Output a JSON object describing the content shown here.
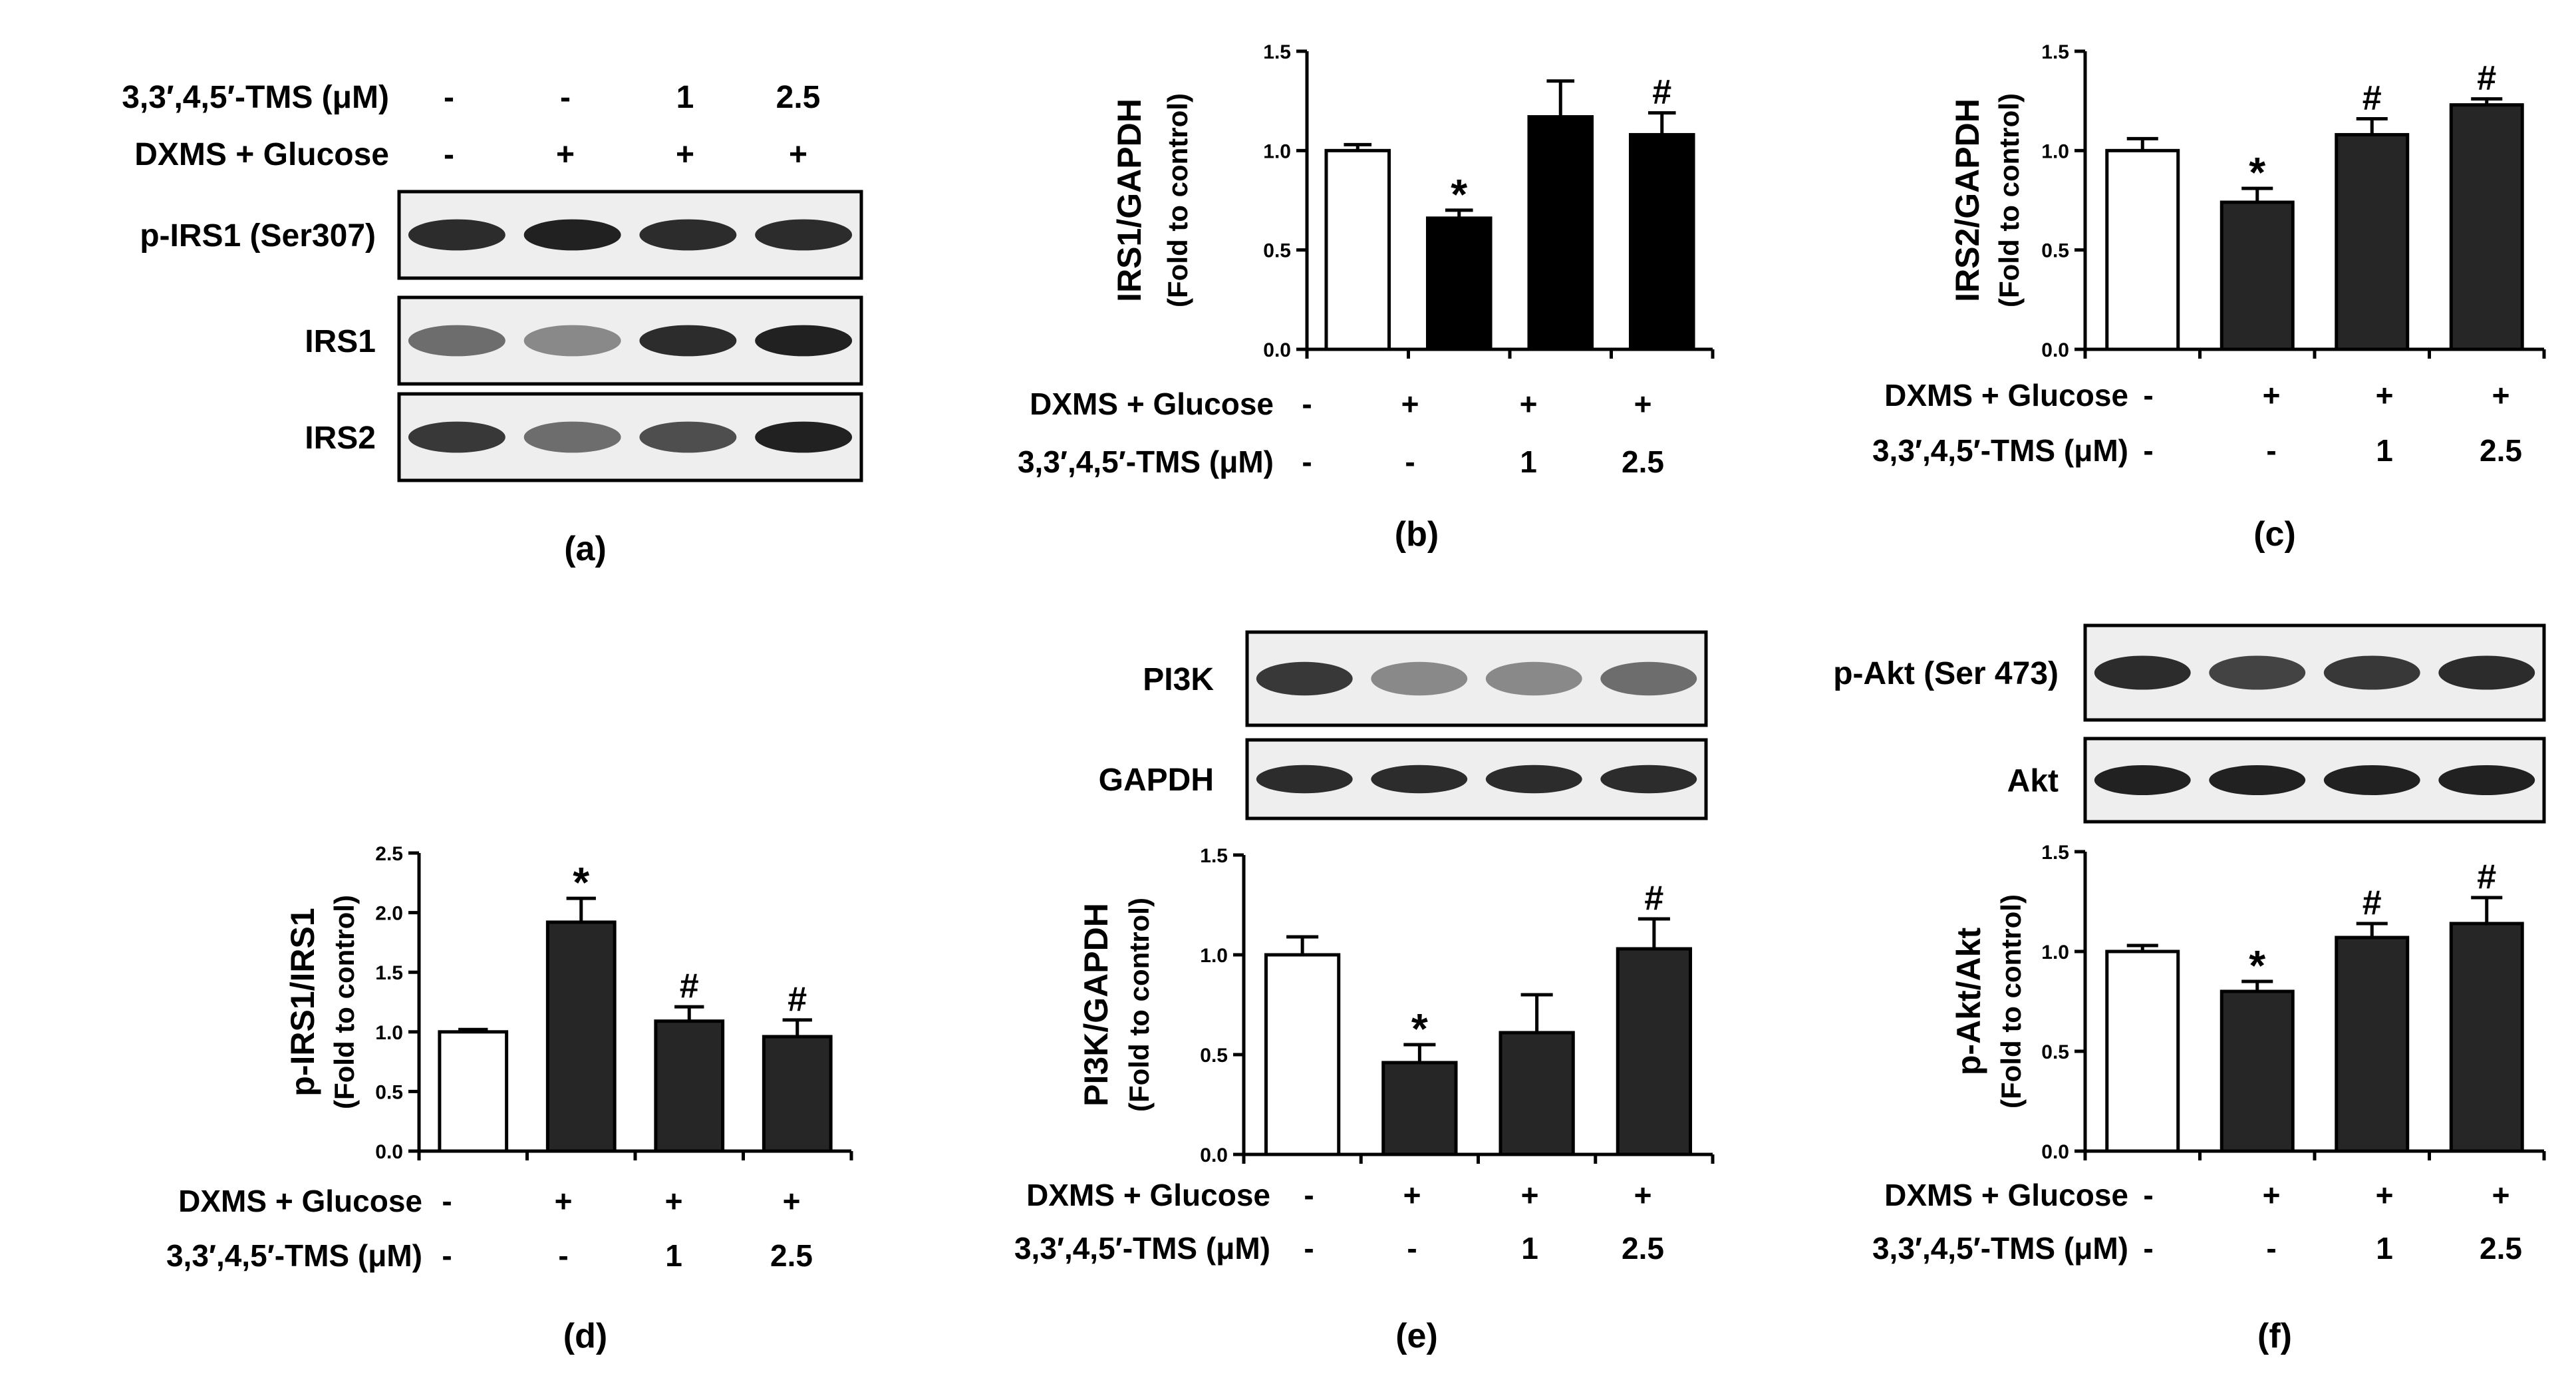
{
  "labels": {
    "dxms": "DXMS + Glucose",
    "tms": "3,3′,4,5′-TMS (μM)",
    "dxms_signs": [
      "-",
      "+",
      "+",
      "+"
    ],
    "tms_doses": [
      "-",
      "-",
      "1",
      "2.5"
    ]
  },
  "blots": {
    "a": {
      "panel": "(a)",
      "rows": [
        {
          "label": "p-IRS1 (Ser307)",
          "bands": [
            0.9,
            0.95,
            0.9,
            0.9
          ]
        },
        {
          "label": "IRS1",
          "bands": [
            0.6,
            0.45,
            0.9,
            0.95
          ]
        },
        {
          "label": "IRS2",
          "bands": [
            0.85,
            0.6,
            0.75,
            0.95
          ]
        }
      ]
    },
    "e": {
      "rows": [
        {
          "label": "PI3K",
          "bands": [
            0.85,
            0.45,
            0.45,
            0.6
          ]
        },
        {
          "label": "GAPDH",
          "bands": [
            0.9,
            0.9,
            0.9,
            0.9
          ]
        }
      ]
    },
    "f": {
      "rows": [
        {
          "label": "p-Akt (Ser 473)",
          "bands": [
            0.9,
            0.8,
            0.85,
            0.9
          ]
        },
        {
          "label": "Akt",
          "bands": [
            0.95,
            0.95,
            0.95,
            0.95
          ]
        }
      ]
    }
  },
  "chart_data": [
    {
      "id": "b",
      "panel": "(b)",
      "type": "bar",
      "ylabel_line1": "IRS1/GAPDH",
      "ylabel_line2": "(Fold to control)",
      "ylim": [
        0,
        1.5
      ],
      "yticks": [
        "0.0",
        "0.5",
        "1.0",
        "1.5"
      ],
      "values": [
        1.0,
        0.66,
        1.17,
        1.08
      ],
      "errors": [
        0.03,
        0.04,
        0.18,
        0.11
      ],
      "marks": [
        "",
        "*",
        "",
        "#"
      ],
      "fills": [
        "#ffffff",
        "#000000",
        "#000000",
        "#000000"
      ],
      "xlabel_order": [
        "dxms",
        "tms"
      ]
    },
    {
      "id": "c",
      "panel": "(c)",
      "type": "bar",
      "ylabel_line1": "IRS2/GAPDH",
      "ylabel_line2": "(Fold to control)",
      "ylim": [
        0,
        1.5
      ],
      "yticks": [
        "0.0",
        "0.5",
        "1.0",
        "1.5"
      ],
      "values": [
        1.0,
        0.74,
        1.08,
        1.23
      ],
      "errors": [
        0.06,
        0.07,
        0.08,
        0.03
      ],
      "marks": [
        "",
        "*",
        "#",
        "#"
      ],
      "fills": [
        "#ffffff",
        "#262626",
        "#262626",
        "#262626"
      ],
      "xlabel_order": [
        "dxms",
        "tms"
      ]
    },
    {
      "id": "d",
      "panel": "(d)",
      "type": "bar",
      "ylabel_line1": "p-IRS1/IRS1",
      "ylabel_line2": "(Fold to control)",
      "ylim": [
        0,
        2.5
      ],
      "yticks": [
        "0.0",
        "0.5",
        "1.0",
        "1.5",
        "2.0",
        "2.5"
      ],
      "values": [
        1.0,
        1.92,
        1.09,
        0.96
      ],
      "errors": [
        0.02,
        0.2,
        0.12,
        0.14
      ],
      "marks": [
        "",
        "*",
        "#",
        "#"
      ],
      "fills": [
        "#ffffff",
        "#262626",
        "#262626",
        "#262626"
      ],
      "xlabel_order": [
        "dxms",
        "tms"
      ]
    },
    {
      "id": "e",
      "panel": "(e)",
      "type": "bar",
      "ylabel_line1": "PI3K/GAPDH",
      "ylabel_line2": "(Fold to control)",
      "ylim": [
        0,
        1.5
      ],
      "yticks": [
        "0.0",
        "0.5",
        "1.0",
        "1.5"
      ],
      "values": [
        1.0,
        0.46,
        0.61,
        1.03
      ],
      "errors": [
        0.09,
        0.09,
        0.19,
        0.15
      ],
      "marks": [
        "",
        "*",
        "",
        "#"
      ],
      "fills": [
        "#ffffff",
        "#262626",
        "#262626",
        "#262626"
      ],
      "xlabel_order": [
        "dxms",
        "tms"
      ]
    },
    {
      "id": "f",
      "panel": "(f)",
      "type": "bar",
      "ylabel_line1": "p-Akt/Akt",
      "ylabel_line2": "(Fold to control)",
      "ylim": [
        0,
        1.5
      ],
      "yticks": [
        "0.0",
        "0.5",
        "1.0",
        "1.5"
      ],
      "values": [
        1.0,
        0.8,
        1.07,
        1.14
      ],
      "errors": [
        0.03,
        0.05,
        0.07,
        0.13
      ],
      "marks": [
        "",
        "*",
        "#",
        "#"
      ],
      "fills": [
        "#ffffff",
        "#262626",
        "#262626",
        "#262626"
      ],
      "xlabel_order": [
        "dxms",
        "tms"
      ]
    }
  ]
}
